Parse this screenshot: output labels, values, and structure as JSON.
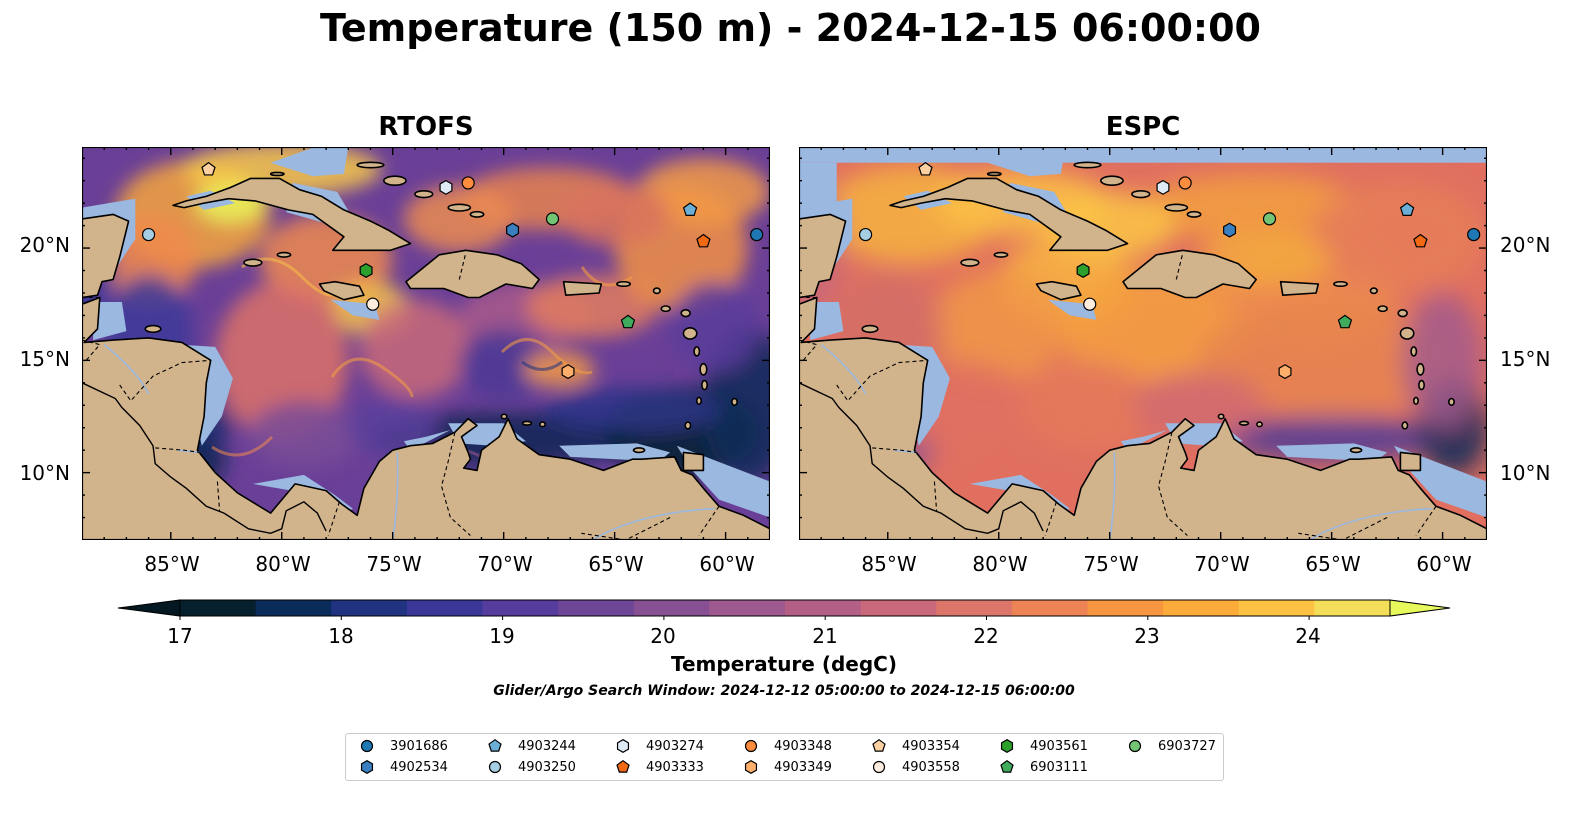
{
  "title": "Temperature (150 m) - 2024-12-15 06:00:00",
  "panels": [
    {
      "id": "rtofs",
      "title": "RTOFS"
    },
    {
      "id": "espc",
      "title": "ESPC"
    }
  ],
  "map": {
    "lon_range": [
      -89,
      -58
    ],
    "lat_range": [
      7,
      24.5
    ],
    "lon_ticks": [
      "85°W",
      "80°W",
      "75°W",
      "70°W",
      "65°W",
      "60°W"
    ],
    "lat_ticks": [
      "20°N",
      "15°N",
      "10°N"
    ],
    "colors": {
      "land": "#d2b48c",
      "shallow_water": "#9ab8e0",
      "coast": "#000000"
    }
  },
  "colorbar": {
    "label": "Temperature (degC)",
    "ticks": [
      "17",
      "18",
      "19",
      "20",
      "21",
      "22",
      "23",
      "24"
    ],
    "range": [
      16.75,
      24.5
    ],
    "colors": [
      "#06202e",
      "#0a2c5a",
      "#1f3380",
      "#3a3799",
      "#563c9d",
      "#6e4698",
      "#865092",
      "#9e598e",
      "#b45f86",
      "#c8687a",
      "#dc756a",
      "#ec8455",
      "#f69640",
      "#fbab3a",
      "#fcc244",
      "#f4dd58"
    ],
    "over_color": "#e8fa5b",
    "under_color": "#041822"
  },
  "search_window": "Glider/Argo Search Window: 2024-12-12 05:00:00 to 2024-12-15 06:00:00",
  "floats": [
    {
      "id": "3901686",
      "marker": "circle",
      "color": "#1f77b4",
      "lon": -58.6,
      "lat": 20.6
    },
    {
      "id": "4902534",
      "marker": "hexagon",
      "color": "#3a7fc0",
      "lon": -69.6,
      "lat": 20.8
    },
    {
      "id": "4903244",
      "marker": "pentagon",
      "color": "#6baed6",
      "lon": -61.6,
      "lat": 21.7
    },
    {
      "id": "4903250",
      "marker": "circle",
      "color": "#a6cee3",
      "lon": -86.0,
      "lat": 20.6
    },
    {
      "id": "4903274",
      "marker": "hexagon",
      "color": "#deebf7",
      "lon": -72.6,
      "lat": 22.7
    },
    {
      "id": "4903333",
      "marker": "pentagon",
      "color": "#f16913",
      "lon": -61.0,
      "lat": 20.3
    },
    {
      "id": "4903348",
      "marker": "circle",
      "color": "#fd8d3c",
      "lon": -71.6,
      "lat": 22.9
    },
    {
      "id": "4903349",
      "marker": "hexagon",
      "color": "#fdae6b",
      "lon": -67.1,
      "lat": 14.5
    },
    {
      "id": "4903354",
      "marker": "pentagon",
      "color": "#fdd0a2",
      "lon": -83.3,
      "lat": 23.5
    },
    {
      "id": "4903558",
      "marker": "circle",
      "color": "#feedde",
      "lon": -75.9,
      "lat": 17.5
    },
    {
      "id": "4903561",
      "marker": "hexagon",
      "color": "#2ca02c",
      "lon": -76.2,
      "lat": 19.0
    },
    {
      "id": "6903111",
      "marker": "pentagon",
      "color": "#41ab5d",
      "lon": -64.4,
      "lat": 16.7
    },
    {
      "id": "6903727",
      "marker": "circle",
      "color": "#74c476",
      "lon": -67.8,
      "lat": 21.3
    }
  ]
}
